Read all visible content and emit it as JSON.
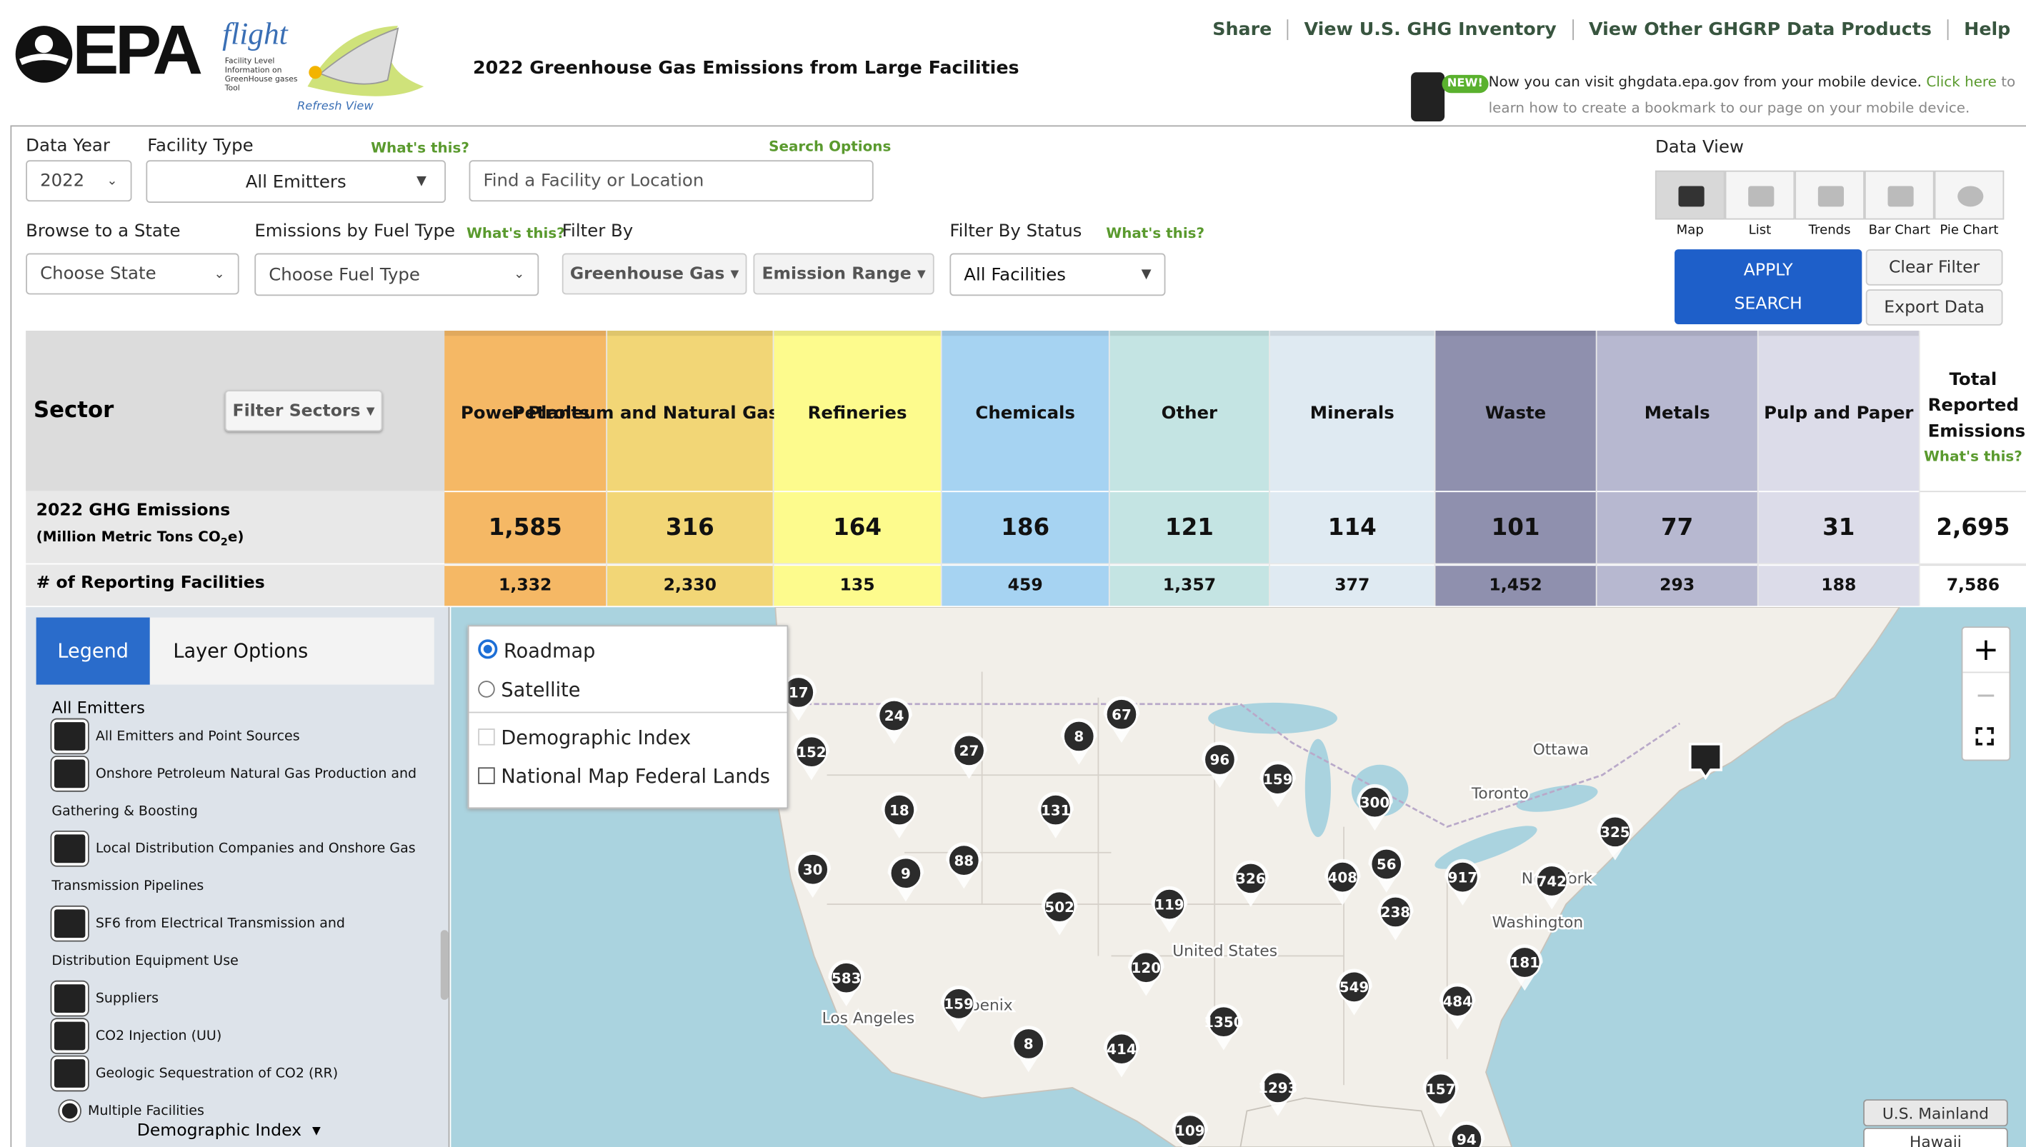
{
  "header": {
    "logo": "EPA",
    "tool_name": "flight",
    "tool_full_name": "Facility Level Information on GreenHouse gases Tool",
    "refresh": "Refresh View",
    "title": "2022 Greenhouse Gas Emissions from Large Facilities",
    "nav": [
      "Share",
      "View U.S. GHG Inventory",
      "View Other GHGRP Data Products",
      "Help"
    ],
    "mobile": {
      "badge": "NEW!",
      "text": "Now you can visit ghgdata.epa.gov from your mobile device.",
      "link": "Click here",
      "rest": "to learn how to create a bookmark to our page on your mobile device."
    }
  },
  "filters": {
    "data_year": {
      "label": "Data Year",
      "value": "2022"
    },
    "facility_type": {
      "label": "Facility Type",
      "help": "What's this?",
      "value": "All Emitters"
    },
    "search": {
      "label": "Search Options",
      "placeholder": "Find a Facility or Location"
    },
    "state": {
      "label": "Browse to a State",
      "value": "Choose State"
    },
    "fuel": {
      "label": "Emissions by Fuel Type",
      "help": "What's this?",
      "value": "Choose Fuel Type"
    },
    "filter_by": {
      "label": "Filter By",
      "options": [
        "Greenhouse Gas",
        "Emission Range"
      ]
    },
    "status": {
      "label": "Filter By Status",
      "help": "What's this?",
      "value": "All Facilities"
    },
    "data_view": {
      "label": "Data View",
      "views": [
        "Map",
        "List",
        "Trends",
        "Bar Chart",
        "Pie Chart"
      ]
    },
    "buttons": {
      "apply": "APPLY SEARCH",
      "clear": "Clear Filter",
      "export": "Export Data"
    }
  },
  "sectors": {
    "header": "Sector",
    "filter_button": "Filter Sectors",
    "row_labels": {
      "emissions": "2022 GHG Emissions",
      "units_a": "(Million Metric Tons CO",
      "units_sub": "2",
      "units_b": "e)",
      "facilities": "# of Reporting Facilities"
    },
    "columns": [
      {
        "name": "Power Plants",
        "color": "#f5b865",
        "emissions": "1,585",
        "facilities": "1,332"
      },
      {
        "name": "Petroleum and Natural Gas Systems",
        "color": "#f2d676",
        "emissions": "316",
        "facilities": "2,330"
      },
      {
        "name": "Refineries",
        "color": "#fdfb8d",
        "emissions": "164",
        "facilities": "135"
      },
      {
        "name": "Chemicals",
        "color": "#a6d3f2",
        "emissions": "186",
        "facilities": "459"
      },
      {
        "name": "Other",
        "color": "#c4e4e3",
        "emissions": "121",
        "facilities": "1,357"
      },
      {
        "name": "Minerals",
        "color": "#dfeaf2",
        "emissions": "114",
        "facilities": "377"
      },
      {
        "name": "Waste",
        "color": "#8f90ae",
        "emissions": "101",
        "facilities": "1,452"
      },
      {
        "name": "Metals",
        "color": "#b7b8d0",
        "emissions": "77",
        "facilities": "293"
      },
      {
        "name": "Pulp and Paper",
        "color": "#dcdce9",
        "emissions": "31",
        "facilities": "188"
      }
    ],
    "total": {
      "name": "Total Reported Emissions",
      "help": "What's this?",
      "emissions": "2,695",
      "facilities": "7,586"
    }
  },
  "legend": {
    "tabs": [
      "Legend",
      "Layer Options"
    ],
    "heading": "All Emitters",
    "items": [
      "All Emitters and Point Sources",
      "Onshore Petroleum Natural Gas Production and Gathering & Boosting",
      "Local Distribution Companies and Onshore Gas Transmission Pipelines",
      "SF6 from Electrical Transmission and Distribution Equipment Use",
      "Suppliers",
      "CO2 Injection (UU)",
      "Geologic Sequestration of CO2 (RR)",
      "Multiple Facilities"
    ],
    "footer": "Demographic Index"
  },
  "layers": {
    "base": [
      "Roadmap",
      "Satellite"
    ],
    "overlays": [
      "Demographic Index",
      "National Map Federal Lands"
    ]
  },
  "map": {
    "zoom": [
      "+",
      "−"
    ],
    "places": [
      "Ottawa",
      "Toronto",
      "New York",
      "Washington",
      "United States",
      "Los Angeles",
      "Phoenix"
    ],
    "clusters": [
      "17",
      "24",
      "152",
      "27",
      "8",
      "67",
      "96",
      "159",
      "300",
      "18",
      "131",
      "30",
      "9",
      "88",
      "326",
      "408",
      "56",
      "917",
      "742",
      "325",
      "502",
      "119",
      "238",
      "181",
      "583",
      "120",
      "549",
      "484",
      "159",
      "1350",
      "8",
      "414",
      "1293",
      "157",
      "109",
      "94"
    ],
    "regions": [
      "U.S. Mainland",
      "Hawaii"
    ]
  }
}
